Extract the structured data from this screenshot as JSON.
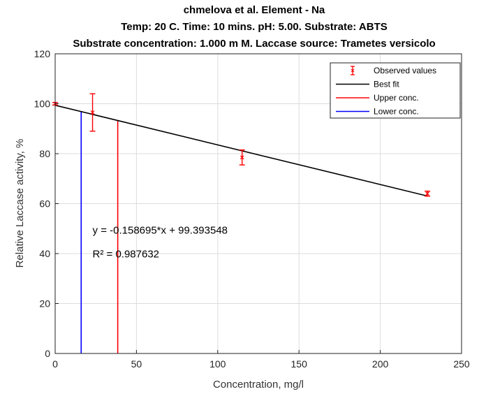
{
  "chart_data": {
    "type": "scatter",
    "title_lines": [
      "chmelova et al. Element -  Na",
      "Temp: 20 C.  Time: 10 mins. pH:  5.00. Substrate: ABTS",
      "Substrate concentration: 1.000 m M. Laccase source: Trametes versicolo"
    ],
    "xlabel": "Concentration, mg/l",
    "ylabel": "Relative Laccase activity, %",
    "xlim": [
      0,
      250
    ],
    "ylim": [
      0,
      120
    ],
    "xticks": [
      0,
      50,
      100,
      150,
      200,
      250
    ],
    "yticks": [
      0,
      20,
      40,
      60,
      80,
      100,
      120
    ],
    "grid": true,
    "legend_position": "top-right",
    "series": [
      {
        "name": "Observed values",
        "color": "#ff0000",
        "points": [
          {
            "x": 0,
            "y": 100,
            "low": 99.5,
            "high": 100.5
          },
          {
            "x": 23,
            "y": 96.5,
            "low": 89,
            "high": 104
          },
          {
            "x": 115,
            "y": 78.5,
            "low": 75.5,
            "high": 81.5
          },
          {
            "x": 229,
            "y": 64,
            "low": 63,
            "high": 65
          }
        ]
      },
      {
        "name": "Best fit",
        "color": "#000000",
        "x": [
          0,
          229
        ],
        "y": [
          99.393548,
          63.05
        ]
      },
      {
        "name": "Upper conc.",
        "color": "#ff0000",
        "x": [
          38.5,
          38.5
        ],
        "y": [
          0,
          93.3
        ]
      },
      {
        "name": "Lower conc.",
        "color": "#0000ff",
        "x": [
          16,
          16
        ],
        "y": [
          0,
          96.9
        ]
      }
    ],
    "annotations": [
      {
        "text": "y = -0.158695*x + 99.393548",
        "x": 23,
        "y": 48
      },
      {
        "text": "R² =  0.987632",
        "x": 23,
        "y": 38.5
      }
    ]
  }
}
